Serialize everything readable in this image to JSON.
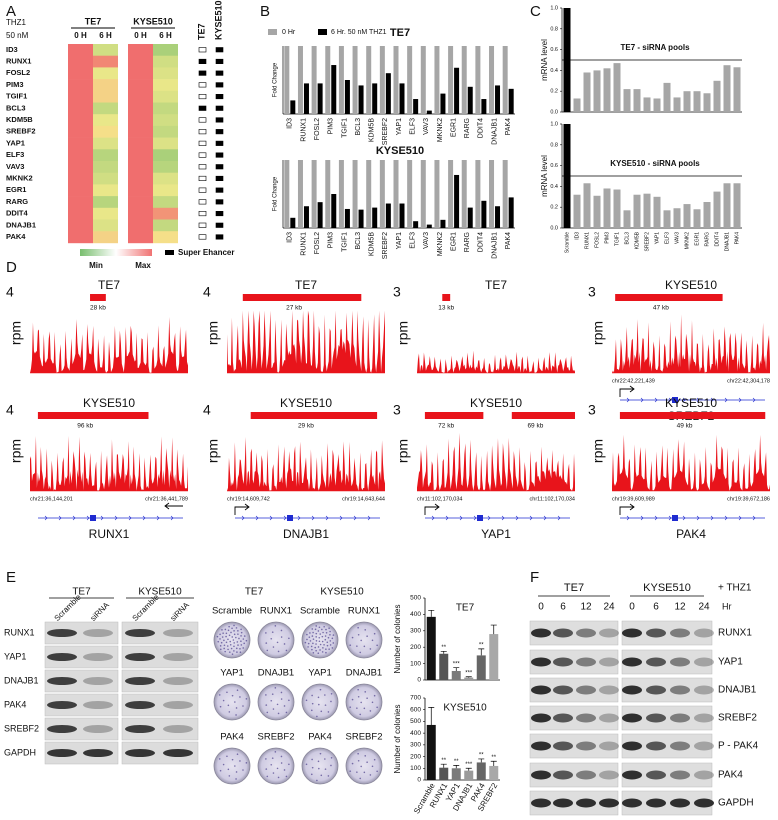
{
  "panels": {
    "A": {
      "label": "A",
      "treatment": "THZ1",
      "dose": "50 nM",
      "cell_lines": [
        "TE7",
        "KYSE510"
      ],
      "timepoints": [
        "0 H",
        "6 H"
      ],
      "genes": [
        "ID3",
        "RUNX1",
        "FOSL2",
        "PIM3",
        "TGIF1",
        "BCL3",
        "KDM5B",
        "SREBF2",
        "YAP1",
        "ELF3",
        "VAV3",
        "MKNK2",
        "EGR1",
        "RARG",
        "DDIT4",
        "DNAJB1",
        "PAK4"
      ],
      "heatmap": [
        [
          1,
          1,
          1,
          1,
          1,
          1,
          1,
          1,
          1,
          1,
          1,
          1,
          1,
          1,
          1,
          1,
          1
        ],
        [
          0.35,
          0.9,
          0.45,
          0.6,
          0.6,
          0.3,
          0.45,
          0.55,
          0.4,
          0.25,
          0.3,
          0.35,
          0.45,
          0.25,
          0.45,
          0.4,
          0.6
        ],
        [
          1,
          1,
          1,
          1,
          1,
          1,
          1,
          1,
          1,
          1,
          1,
          1,
          1,
          1,
          1,
          1,
          1
        ],
        [
          0.2,
          0.35,
          0.4,
          0.45,
          0.4,
          0.3,
          0.35,
          0.3,
          0.4,
          0.2,
          0.25,
          0.4,
          0.45,
          0.3,
          0.85,
          0.3,
          0.55
        ]
      ],
      "super_enhancer": {
        "columns": [
          "TE7",
          "KYSE510"
        ],
        "values": [
          [
            0,
            1,
            1,
            0,
            0,
            1,
            0,
            0,
            0,
            0,
            0,
            0,
            0,
            0,
            0,
            0,
            0
          ],
          [
            1,
            1,
            1,
            1,
            1,
            1,
            1,
            1,
            1,
            1,
            1,
            1,
            1,
            1,
            1,
            1,
            1
          ]
        ]
      },
      "legend": {
        "min": "Min",
        "max": "Max",
        "super_enhancer": "Super Ehancer"
      }
    },
    "B": {
      "label": "B",
      "y_label": "Fold Change",
      "ylim": [
        0,
        1
      ],
      "legend": [
        {
          "name": "0 Hr",
          "color": "#a6a6a6"
        },
        {
          "name": "6 Hr. 50 nM THZ1",
          "color": "#000000"
        }
      ],
      "charts": [
        {
          "title": "TE7",
          "categories": [
            "ID3",
            "RUNX1",
            "FOSL2",
            "PIM3",
            "TGIF1",
            "BCL3",
            "KDM5B",
            "SREBF2",
            "YAP1",
            "ELF3",
            "VAV3",
            "MKNK2",
            "EGR1",
            "RARG",
            "DDIT4",
            "DNAJB1",
            "PAK4"
          ],
          "values": [
            [
              1,
              1,
              1,
              1,
              1,
              1,
              1,
              1,
              1,
              1,
              1,
              1,
              1,
              1,
              1,
              1,
              1
            ],
            [
              0.2,
              0.45,
              0.45,
              0.72,
              0.5,
              0.42,
              0.45,
              0.6,
              0.45,
              0.22,
              0.05,
              0.3,
              0.68,
              0.4,
              0.22,
              0.42,
              0.37
            ]
          ]
        },
        {
          "title": "KYSE510",
          "categories": [
            "ID3",
            "RUNX1",
            "FOSL2",
            "PIM3",
            "TGIF1",
            "BCL3",
            "KDM5B",
            "SREBF2",
            "YAP1",
            "ELF3",
            "VAV3",
            "MKNK2",
            "EGR1",
            "RARG",
            "DDIT4",
            "DNAJB1",
            "PAK4"
          ],
          "values": [
            [
              1,
              1,
              1,
              1,
              1,
              1,
              1,
              1,
              1,
              1,
              1,
              1,
              1,
              1,
              1,
              1,
              1
            ],
            [
              0.15,
              0.32,
              0.38,
              0.5,
              0.28,
              0.27,
              0.3,
              0.36,
              0.36,
              0.1,
              0.05,
              0.12,
              0.78,
              0.3,
              0.4,
              0.32,
              0.45
            ]
          ]
        }
      ]
    },
    "C": {
      "label": "C",
      "y_label": "mRNA level",
      "ylim": [
        0,
        1
      ],
      "yticks": [
        {
          "value": 0,
          "label": "0.0"
        },
        0.2,
        0.4,
        0.6,
        0.8,
        {
          "value": 1,
          "label": "1.0"
        }
      ],
      "reference": 0.5,
      "colors": [
        "#000000",
        "#a6a6a6"
      ],
      "categories": [
        "Scramble",
        "ID3",
        "RUNX1",
        "FOSL2",
        "PIM3",
        "TGIF1",
        "BCL3",
        "KDM5B",
        "SREBF2",
        "YAP1",
        "ELF3",
        "VAV3",
        "MKNK2",
        "EGR1",
        "RARG",
        "DDIT4",
        "DNAJB1",
        "PAK4"
      ],
      "charts": [
        {
          "annotation": "TE7 - siRNA pools",
          "values": [
            1,
            0.13,
            0.38,
            0.4,
            0.42,
            0.47,
            0.22,
            0.22,
            0.14,
            0.13,
            0.28,
            0.14,
            0.2,
            0.2,
            0.18,
            0.3,
            0.45,
            0.43
          ]
        },
        {
          "annotation": "KYSE510 - siRNA pools",
          "values": [
            1,
            0.32,
            0.43,
            0.31,
            0.38,
            0.37,
            0.17,
            0.32,
            0.33,
            0.3,
            0.17,
            0.19,
            0.23,
            0.18,
            0.25,
            0.35,
            0.43,
            0.43
          ]
        }
      ]
    },
    "D": {
      "label": "D",
      "y_label": "rpm",
      "tracks": [
        {
          "title": "TE7",
          "ymax": 4,
          "regions": [
            "28 kb"
          ]
        },
        {
          "title": "TE7",
          "ymax": 4,
          "regions": [
            "27 kb"
          ]
        },
        {
          "title": "TE7",
          "ymax": 3,
          "regions": [
            "13 kb"
          ]
        },
        {
          "title": "KYSE510",
          "ymax": 3,
          "regions": [
            "47 kb"
          ],
          "coords": [
            "chr22:42,221,439",
            "chr22:42,304,178"
          ],
          "gene": "SREBF2"
        },
        {
          "title": "KYSE510",
          "ymax": 4,
          "regions": [
            "96 kb"
          ],
          "coords": [
            "chr21:36,144,201",
            "chr21:36,441,789"
          ],
          "gene": "RUNX1"
        },
        {
          "title": "KYSE510",
          "ymax": 4,
          "regions": [
            "29 kb"
          ],
          "coords": [
            "chr19:14,609,742",
            "chr19:14,643,644"
          ],
          "gene": "DNAJB1"
        },
        {
          "title": "KYSE510",
          "ymax": 3,
          "regions": [
            "72 kb",
            "69 kb"
          ],
          "coords": [
            "chr11:102,170,034",
            "chr11:102,170,034"
          ],
          "gene": "YAP1"
        },
        {
          "title": "KYSE510",
          "ymax": 3,
          "regions": [
            "49 kb"
          ],
          "coords": [
            "chr19:39,609,989",
            "chr19:39,672,186"
          ],
          "gene": "PAK4"
        }
      ]
    },
    "E": {
      "label": "E",
      "western": {
        "cell_lines": [
          "TE7",
          "KYSE510"
        ],
        "lanes": [
          "Scramble",
          "siRNA",
          "Scramble",
          "siRNA"
        ],
        "proteins": [
          "RUNX1",
          "YAP1",
          "DNAJB1",
          "PAK4",
          "SREBF2",
          "GAPDH"
        ]
      },
      "colony": {
        "cell_lines": [
          "TE7",
          "KYSE510"
        ],
        "plates": [
          [
            "Scramble",
            "RUNX1",
            "Scramble",
            "RUNX1"
          ],
          [
            "YAP1",
            "DNAJB1",
            "YAP1",
            "DNAJB1"
          ],
          [
            "PAK4",
            "SREBF2",
            "PAK4",
            "SREBF2"
          ]
        ]
      },
      "colony_charts": {
        "y_label": "Number of colonies",
        "categories": [
          "Scramble",
          "RUNX1",
          "YAP1",
          "DNAJB1",
          "PAK4",
          "SREBF2"
        ],
        "colors": [
          "#111111",
          "#555555",
          "#7a7a7a",
          "#9a9a9a",
          "#666666",
          "#a8a8a8"
        ],
        "charts": [
          {
            "title": "TE7",
            "ylim": [
              0,
              500
            ],
            "yticks": [
              0,
              100,
              200,
              300,
              400,
              500
            ],
            "values": [
              385,
              160,
              55,
              15,
              150,
              280
            ],
            "errors": [
              40,
              15,
              20,
              5,
              40,
              55
            ],
            "significance": [
              null,
              "**",
              "***",
              "***",
              "**",
              null
            ]
          },
          {
            "title": "KYSE510",
            "ylim": [
              0,
              700
            ],
            "yticks": [
              0,
              100,
              200,
              300,
              400,
              500,
              600,
              700
            ],
            "values": [
              470,
              105,
              100,
              80,
              150,
              120
            ],
            "errors": [
              150,
              30,
              25,
              20,
              30,
              40
            ],
            "significance": [
              null,
              "**",
              "**",
              "***",
              "**",
              "**"
            ]
          }
        ]
      }
    },
    "F": {
      "label": "F",
      "cell_lines": [
        "TE7",
        "KYSE510"
      ],
      "treatment": "+ THZ1",
      "times": [
        0,
        6,
        12,
        24,
        0,
        6,
        12,
        24
      ],
      "time_unit": "Hr",
      "proteins": [
        "RUNX1",
        "YAP1",
        "DNAJB1",
        "SREBF2",
        "P - PAK4",
        "PAK4",
        "GAPDH"
      ]
    }
  }
}
